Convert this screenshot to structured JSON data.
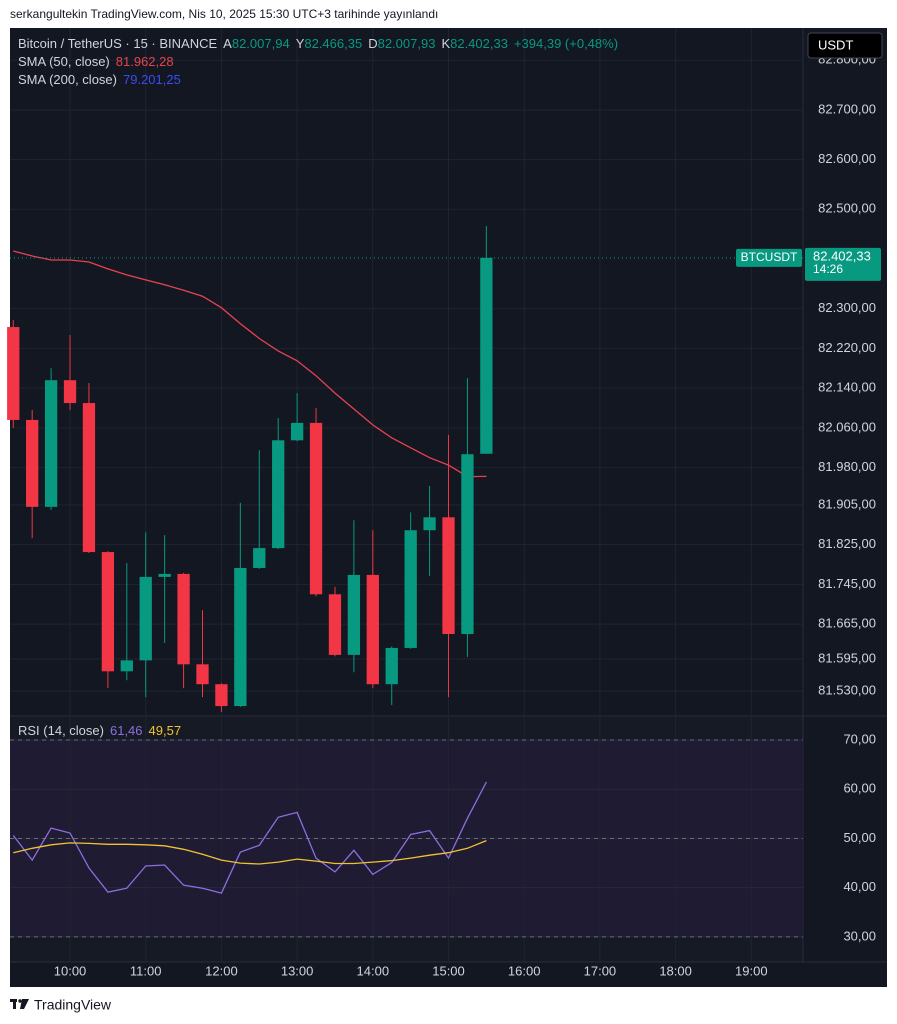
{
  "header": {
    "text": "serkangultekin TradingView.com, Nis 10, 2025 15:30 UTC+3 tarihinde yayınlandı"
  },
  "brand": "TradingView",
  "chart_data": [
    {
      "type": "candlestick",
      "title": "Bitcoin / TetherUS · 15 · BINANCE",
      "ohlc_legend": [
        {
          "label": "A",
          "value": "82.007,94"
        },
        {
          "label": "Y",
          "value": "82.466,35"
        },
        {
          "label": "D",
          "value": "82.007,93"
        },
        {
          "label": "K",
          "value": "82.402,33"
        }
      ],
      "change": "+394,39 (+0,48%)",
      "currency": "USDT",
      "symbol": "BTCUSDT",
      "last_price_label": "82.402,33",
      "countdown": "14:26",
      "up_color": "#089981",
      "down_color": "#f23645",
      "candles": {
        "x": [
          9.25,
          9.5,
          9.75,
          10,
          10.25,
          10.5,
          10.75,
          11,
          11.25,
          11.5,
          11.75,
          12,
          12.25,
          12.5,
          12.75,
          13,
          13.25,
          13.5,
          13.75,
          14,
          14.25,
          14.5,
          14.75,
          15,
          15.25,
          15.5
        ],
        "open": [
          82263,
          82076,
          81901,
          82156,
          82110,
          81810,
          81570,
          81592,
          81760,
          81766,
          81584,
          81544,
          81500,
          81778,
          81818,
          82035,
          82070,
          81725,
          81603,
          81764,
          81544,
          81617,
          81854,
          81880,
          81645,
          82007.94
        ],
        "high": [
          82277,
          82096,
          82180,
          82247,
          82150,
          81812,
          81788,
          81850,
          81844,
          81768,
          81693,
          81546,
          81909,
          82015,
          82080,
          82130,
          82100,
          81740,
          81874,
          81854,
          81620,
          81890,
          81943,
          82046,
          82160,
          82466.35
        ],
        "low": [
          82060,
          81838,
          81895,
          82096,
          81808,
          81536,
          81552,
          81518,
          81627,
          81536,
          81518,
          81488,
          81498,
          81776,
          81816,
          82033,
          81721,
          81600,
          81568,
          81536,
          81502,
          81615,
          81762,
          81518,
          81599,
          82007.93
        ],
        "close": [
          82076,
          81901,
          82156,
          82110,
          81810,
          81570,
          81592,
          81760,
          81766,
          81584,
          81544,
          81500,
          81778,
          81818,
          82035,
          82070,
          81725,
          81603,
          81764,
          81544,
          81617,
          81854,
          81880,
          81645,
          82007,
          82402.33
        ]
      },
      "indicators": [
        {
          "name": "SMA (50, close)",
          "value_label": "81.962,28",
          "color": "#e8424f",
          "values": [
            82416,
            82406,
            82398,
            82398,
            82394,
            82380,
            82368,
            82358,
            82348,
            82337,
            82325,
            82302,
            82270,
            82240,
            82215,
            82195,
            82165,
            82130,
            82098,
            82066,
            82040,
            82020,
            82000,
            81985,
            81962,
            81962.28
          ]
        },
        {
          "name": "SMA (200, close)",
          "value_label": "79.201,25",
          "color": "#3a4cf0"
        }
      ],
      "xlim": [
        9.207,
        19.683
      ],
      "xticks": [
        {
          "value": 10,
          "label": "10:00"
        },
        {
          "value": 11,
          "label": "11:00"
        },
        {
          "value": 12,
          "label": "12:00"
        },
        {
          "value": 13,
          "label": "13:00"
        },
        {
          "value": 14,
          "label": "14:00"
        },
        {
          "value": 15,
          "label": "15:00"
        },
        {
          "value": 16,
          "label": "16:00"
        },
        {
          "value": 17,
          "label": "17:00"
        },
        {
          "value": 18,
          "label": "18:00"
        },
        {
          "value": 19,
          "label": "19:00"
        }
      ],
      "ylim": [
        81482,
        82865
      ],
      "yticks": [
        {
          "value": 82800,
          "label": "82.800,00"
        },
        {
          "value": 82700,
          "label": "82.700,00"
        },
        {
          "value": 82600,
          "label": "82.600,00"
        },
        {
          "value": 82500,
          "label": "82.500,00"
        },
        {
          "value": 82300,
          "label": "82.300,00"
        },
        {
          "value": 82220,
          "label": "82.220,00"
        },
        {
          "value": 82140,
          "label": "82.140,00"
        },
        {
          "value": 82060,
          "label": "82.060,00"
        },
        {
          "value": 81980,
          "label": "81.980,00"
        },
        {
          "value": 81905,
          "label": "81.905,00"
        },
        {
          "value": 81825,
          "label": "81.825,00"
        },
        {
          "value": 81745,
          "label": "81.745,00"
        },
        {
          "value": 81665,
          "label": "81.665,00"
        },
        {
          "value": 81595,
          "label": "81.595,00"
        },
        {
          "value": 81530,
          "label": "81.530,00"
        }
      ],
      "grid": true
    },
    {
      "type": "line",
      "title": "RSI (14, close)",
      "series": [
        {
          "value_label": "61,46",
          "color": "#8e6ee0",
          "values": [
            50.6,
            45.6,
            52.1,
            51.1,
            44,
            39.1,
            39.9,
            44.4,
            44.6,
            40.5,
            39.9,
            38.9,
            47.2,
            48.6,
            54.3,
            55.3,
            46,
            43.2,
            47.6,
            42.7,
            45.1,
            50.8,
            51.6,
            46,
            54.1,
            61.46
          ]
        },
        {
          "value_label": "49,57",
          "color": "#f2c230",
          "values": [
            47.1,
            48,
            48.7,
            49.1,
            49,
            48.8,
            48.8,
            48.7,
            48.5,
            47.8,
            46.8,
            45.6,
            45,
            44.8,
            45.2,
            45.8,
            45.4,
            44.9,
            44.9,
            45.2,
            45.5,
            46,
            46.6,
            47.1,
            48,
            49.57
          ]
        }
      ],
      "band": [
        30,
        70
      ],
      "ylim": [
        24.9,
        74.67
      ],
      "yticks": [
        {
          "value": 70,
          "label": "70,00"
        },
        {
          "value": 60,
          "label": "60,00"
        },
        {
          "value": 50,
          "label": "50,00"
        },
        {
          "value": 40,
          "label": "40,00"
        },
        {
          "value": 30,
          "label": "30,00"
        }
      ],
      "dashed_levels": [
        70,
        50,
        30
      ],
      "grid": true
    }
  ]
}
